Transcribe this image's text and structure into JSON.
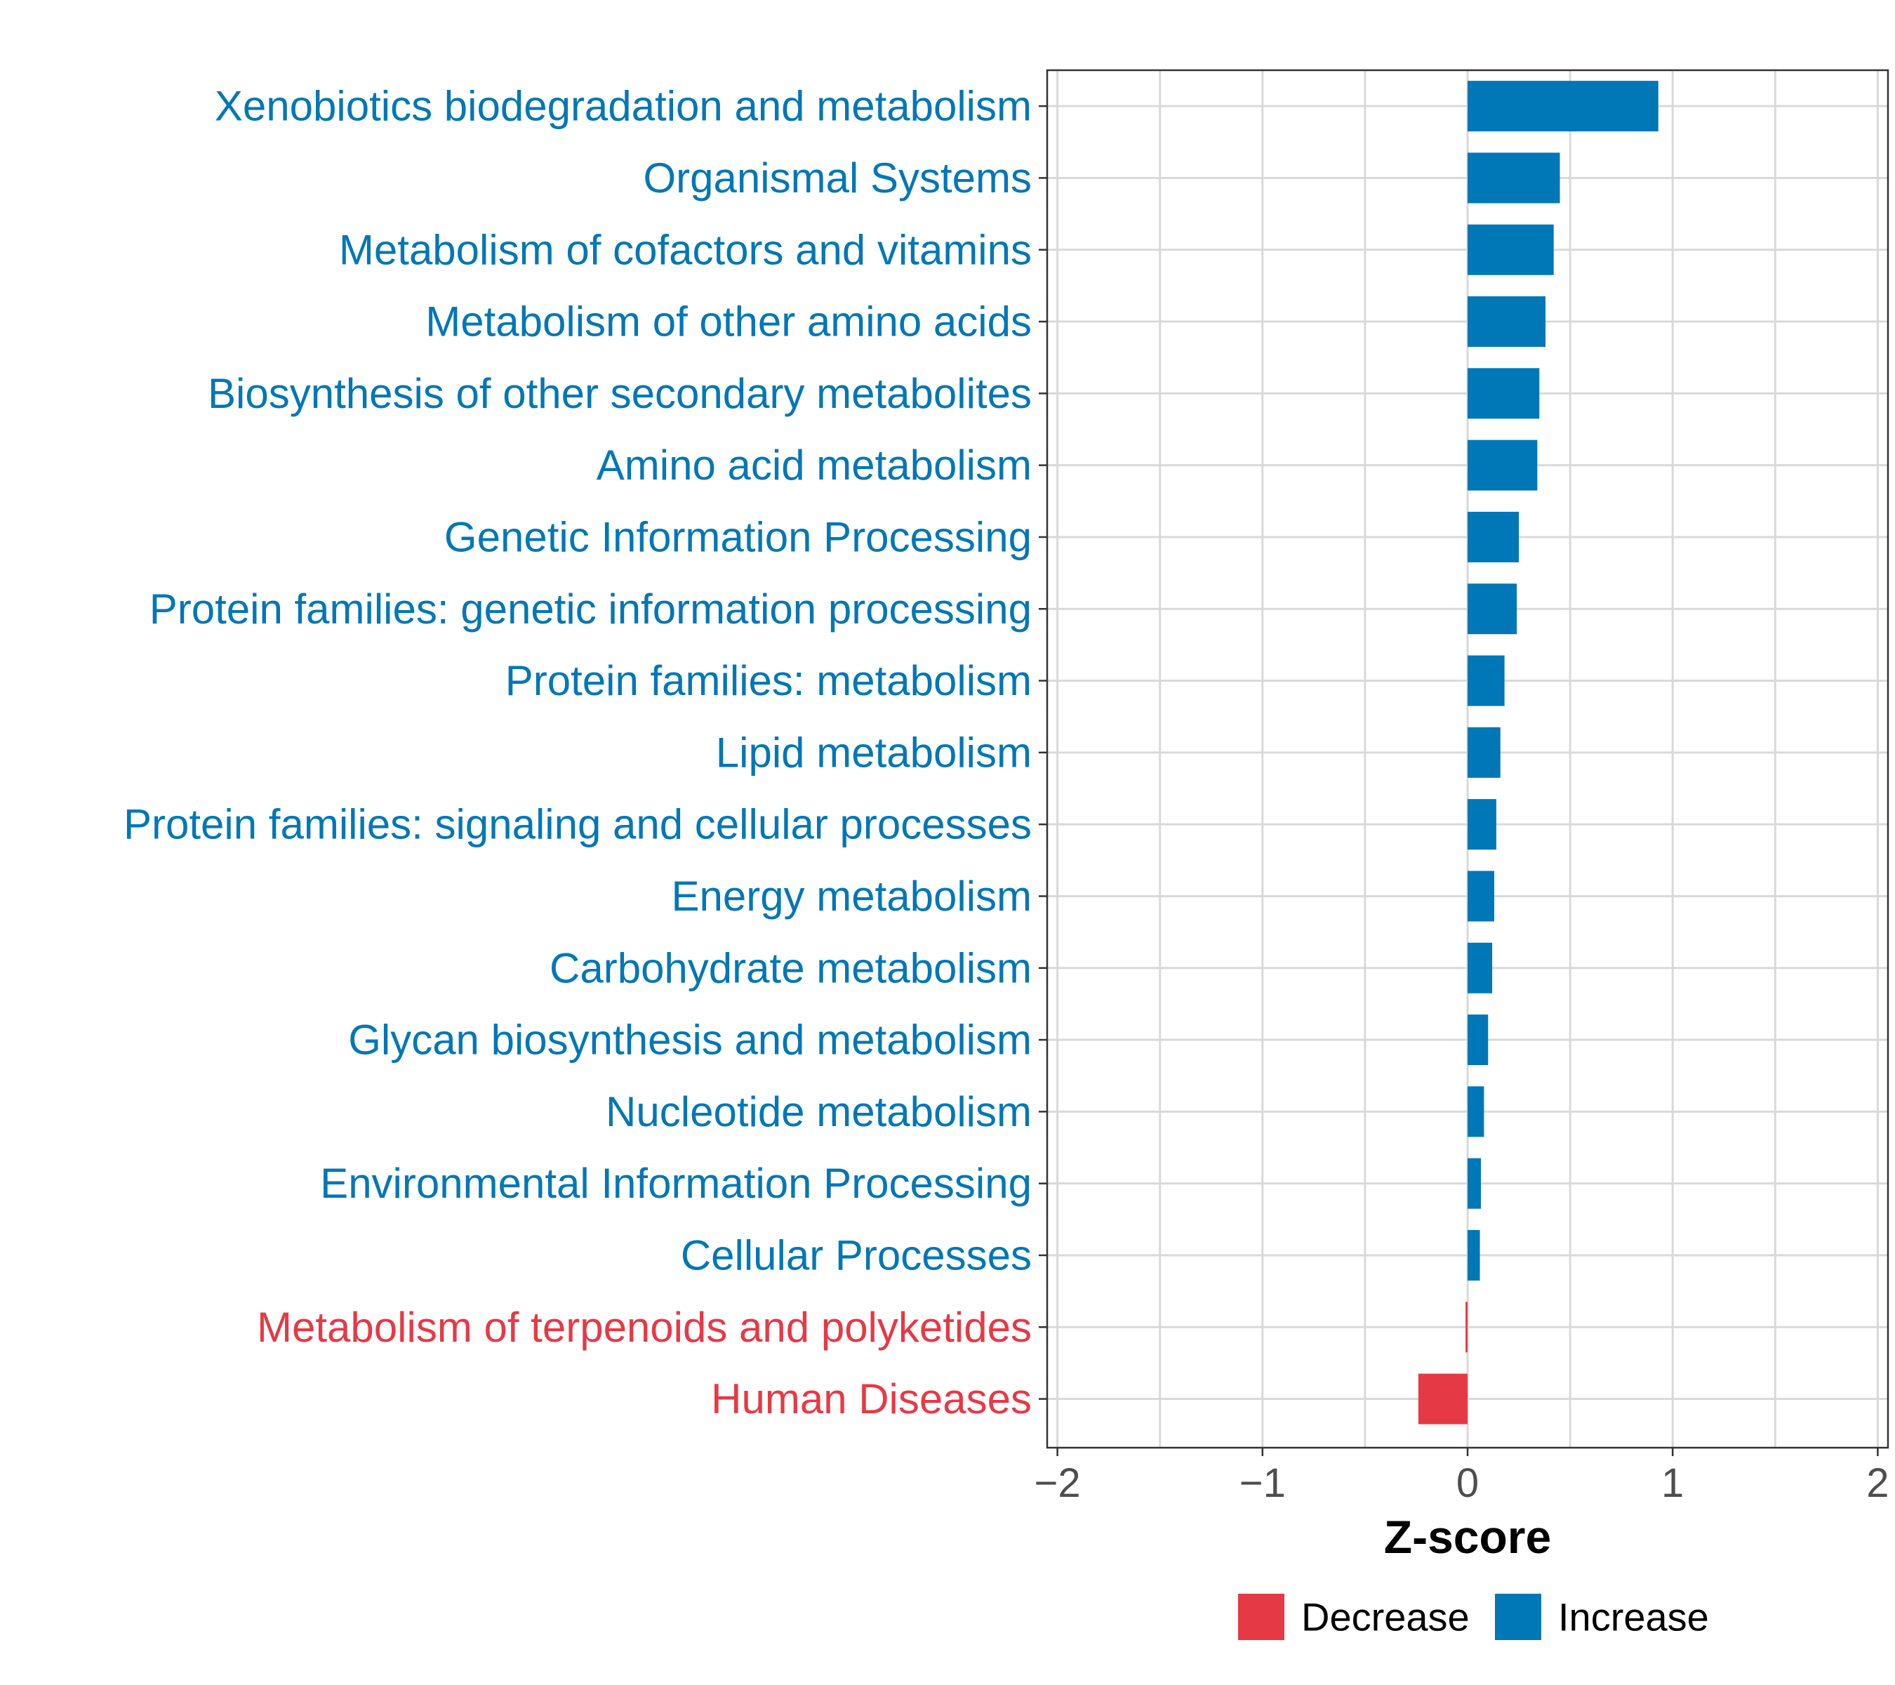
{
  "chart_data": {
    "type": "bar",
    "orientation": "horizontal",
    "title": "",
    "xlabel": "Z-score",
    "ylabel": "",
    "xlim": [
      -2.05,
      2.05
    ],
    "xticks": [
      -2,
      -1,
      0,
      1,
      2
    ],
    "grid": true,
    "colors": {
      "Increase": "#0077b6",
      "Decrease": "#e63946"
    },
    "legend": {
      "position": "bottom",
      "entries": [
        {
          "label": "Decrease",
          "color": "#e63946"
        },
        {
          "label": "Increase",
          "color": "#0077b6"
        }
      ]
    },
    "categories": [
      "Xenobiotics biodegradation and metabolism",
      "Organismal Systems",
      "Metabolism of cofactors and vitamins",
      "Metabolism of other amino acids",
      "Biosynthesis of other secondary metabolites",
      "Amino acid metabolism",
      "Genetic Information Processing",
      "Protein families: genetic information processing",
      "Protein families: metabolism",
      "Lipid metabolism",
      "Protein families: signaling and cellular processes",
      "Energy metabolism",
      "Carbohydrate metabolism",
      "Glycan biosynthesis and metabolism",
      "Nucleotide metabolism",
      "Environmental Information Processing",
      "Cellular Processes",
      "Metabolism of terpenoids and polyketides",
      "Human Diseases"
    ],
    "values": [
      0.93,
      0.45,
      0.42,
      0.38,
      0.35,
      0.34,
      0.25,
      0.24,
      0.18,
      0.16,
      0.14,
      0.13,
      0.12,
      0.1,
      0.08,
      0.065,
      0.06,
      -0.01,
      -0.24
    ],
    "groups": [
      "Increase",
      "Increase",
      "Increase",
      "Increase",
      "Increase",
      "Increase",
      "Increase",
      "Increase",
      "Increase",
      "Increase",
      "Increase",
      "Increase",
      "Increase",
      "Increase",
      "Increase",
      "Increase",
      "Increase",
      "Decrease",
      "Decrease"
    ]
  }
}
